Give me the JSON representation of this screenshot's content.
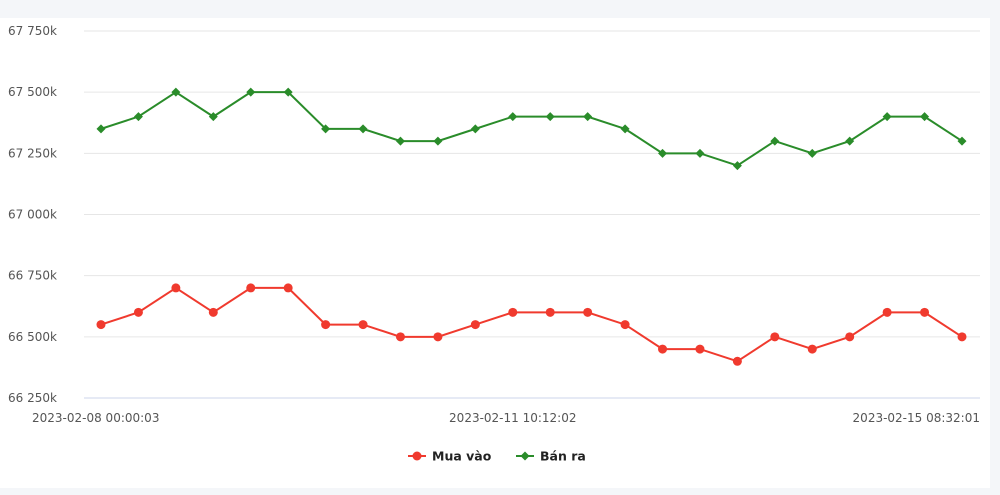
{
  "chart_data": {
    "type": "line",
    "x_tick_labels": [
      "2023-02-08 00:00:03",
      "2023-02-11 10:12:02",
      "2023-02-15 08:32:01"
    ],
    "x_tick_indices": [
      0,
      11,
      23
    ],
    "point_count": 24,
    "ylim": [
      66250,
      67750
    ],
    "y_ticks": [
      66250,
      66500,
      66750,
      67000,
      67250,
      67500,
      67750
    ],
    "y_tick_labels": [
      "66 250k",
      "66 500k",
      "66 750k",
      "67 000k",
      "67 250k",
      "67 500k",
      "67 750k"
    ],
    "grid": true,
    "legend_position": "bottom",
    "series": [
      {
        "name": "Mua vào",
        "color": "#f03a2e",
        "marker": "circle",
        "values": [
          66550,
          66600,
          66700,
          66600,
          66700,
          66700,
          66550,
          66550,
          66500,
          66500,
          66550,
          66600,
          66600,
          66600,
          66550,
          66450,
          66450,
          66400,
          66500,
          66450,
          66500,
          66600,
          66600,
          66500
        ]
      },
      {
        "name": "Bán ra",
        "color": "#2a8c2a",
        "marker": "diamond",
        "values": [
          67350,
          67400,
          67500,
          67400,
          67500,
          67500,
          67350,
          67350,
          67300,
          67300,
          67350,
          67400,
          67400,
          67400,
          67350,
          67250,
          67250,
          67200,
          67300,
          67250,
          67300,
          67400,
          67400,
          67300
        ]
      }
    ]
  }
}
